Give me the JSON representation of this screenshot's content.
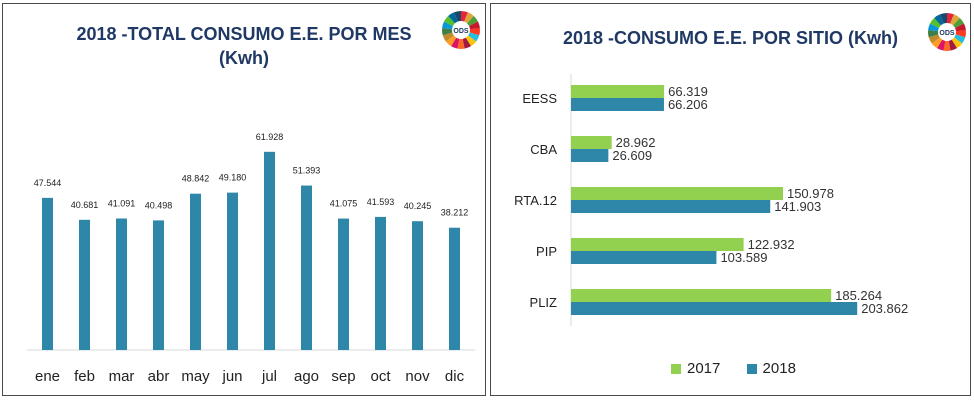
{
  "chart_data": [
    {
      "type": "bar",
      "title": "2018 -TOTAL CONSUMO E.E. POR MES",
      "subtitle": "(Kwh)",
      "categories": [
        "ene",
        "feb",
        "mar",
        "abr",
        "may",
        "jun",
        "jul",
        "ago",
        "sep",
        "oct",
        "nov",
        "dic"
      ],
      "values": [
        47544,
        40681,
        41091,
        40498,
        48842,
        49180,
        61928,
        51393,
        41075,
        41593,
        40245,
        38212
      ],
      "value_labels": [
        "47.544",
        "40.681",
        "41.091",
        "40.498",
        "48.842",
        "49.180",
        "61.928",
        "51.393",
        "41.075",
        "41.593",
        "40.245",
        "38.212"
      ],
      "color": "#2e86a8",
      "ylim": [
        0,
        70000
      ],
      "grid": false
    },
    {
      "type": "bar",
      "orientation": "horizontal",
      "title": "2018 -CONSUMO E.E. POR SITIO (Kwh)",
      "categories": [
        "EESS",
        "CBA",
        "RTA.12",
        "PIP",
        "PLIZ"
      ],
      "series": [
        {
          "name": "2017",
          "color": "#92d050",
          "values": [
            66319,
            28962,
            150978,
            122932,
            185264
          ],
          "value_labels": [
            "66.319",
            "28.962",
            "150.978",
            "122.932",
            "185.264"
          ]
        },
        {
          "name": "2018",
          "color": "#2e86a8",
          "values": [
            66206,
            26609,
            141903,
            103589,
            203862
          ],
          "value_labels": [
            "66.206",
            "26.609",
            "141.903",
            "103.589",
            "203.862"
          ]
        }
      ],
      "xlim": [
        0,
        250000
      ],
      "grid": false,
      "legend_position": "bottom"
    }
  ],
  "logos": {
    "left": "ODS",
    "right": "ODS"
  }
}
